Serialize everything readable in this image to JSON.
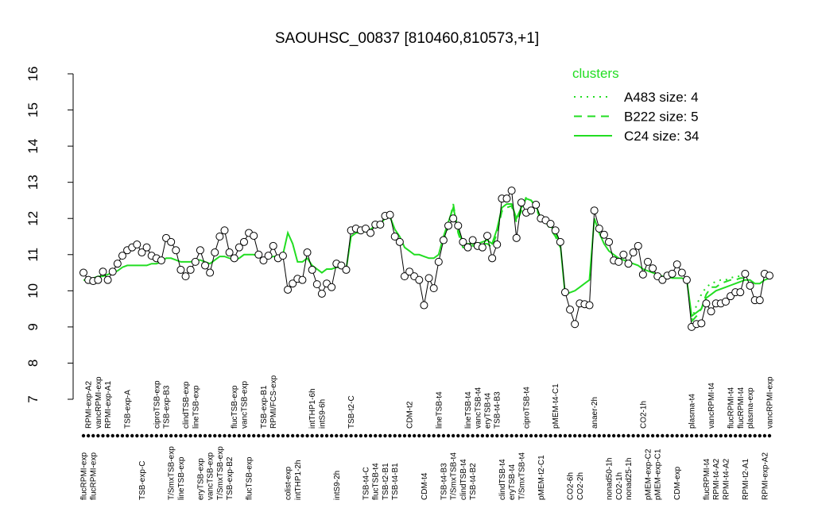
{
  "chart_data": {
    "type": "line",
    "title": "SAOUHSC_00837 [810460,810573,+1]",
    "legend_title": "clusters",
    "legend_position": "top-right",
    "ylim": [
      7,
      16
    ],
    "yticks": [
      7,
      8,
      9,
      10,
      11,
      12,
      13,
      14,
      15,
      16
    ],
    "point_color": "#000000",
    "categories": [
      "flucRPMI-exp",
      "RPMI-exp-A2",
      "flucRPMI-exp",
      "vancRPMI-exp",
      null,
      "RPMI-exp-A1",
      null,
      null,
      null,
      "TSB-exp-A",
      null,
      null,
      "TSB-exp-C",
      null,
      null,
      "ciproTSB-exp",
      null,
      "TSB-exp-B3",
      "T/SmxTSB-exp",
      null,
      "lineTSB-exp",
      "clindTSB-exp",
      null,
      "lineTSB-exp",
      "eryTSB-exp",
      null,
      "vancTSB-exp",
      null,
      "T/SmxTSB-exp",
      null,
      "TSB-exp-B2",
      "flucTSB-exp",
      null,
      "vancTSB-exp",
      "flucTSB-exp",
      null,
      null,
      "TSB-exp-B1",
      null,
      "RPMI/FCS-exp",
      null,
      null,
      "colist-exp",
      null,
      "intTHP1-2h",
      null,
      null,
      "intTHP1-6h",
      null,
      "intS9-6h",
      null,
      null,
      "intS9-2h",
      null,
      null,
      "TSB-t2-C",
      null,
      null,
      "TSB-t4-C",
      null,
      "flucTSB-t4",
      null,
      "TSB-t2-B1",
      null,
      "TSB-t4-B1",
      null,
      null,
      "CDM-t2",
      null,
      null,
      "CDM-t4",
      null,
      null,
      "lineTSB-t4",
      "TSB-t4-B3",
      null,
      "T/SmxTSB-t4",
      null,
      "clindTSB-t4",
      "lineTSB-t4",
      "TSB-t4-B2",
      "vancTSB-t4",
      null,
      "eryTSB-t4",
      null,
      "TSB-t4-B3",
      "clindTSB-t4",
      null,
      "eryTSB-t4",
      null,
      "T/SmxTSB-t4",
      "ciproTSB-t4",
      null,
      null,
      "pMEM-t2-C1",
      null,
      null,
      "pMEM-t4-C1",
      null,
      null,
      "CO2-6h",
      null,
      "CO2-2h",
      null,
      null,
      "anaer-2h",
      null,
      null,
      "nonad50-1h",
      null,
      "CO2-1h",
      null,
      "nonad25-1h",
      null,
      null,
      "CO2-1h",
      "pMEM-exp-C2",
      null,
      "pMEM-exp-C1",
      null,
      null,
      null,
      "CDM-exp",
      null,
      null,
      "plasma-t4",
      null,
      null,
      "flucRPMI-t4",
      "vancRPMI-t4",
      "RPMI-t4-A2",
      null,
      "RPMI-t4-A2",
      "flucRPMI-t4",
      null,
      "flucRPMI-t4",
      "RPMI-t2-A1",
      "plasma-exp",
      null,
      null,
      "RPMI-exp-A2",
      "vancRPMI-exp"
    ],
    "values": [
      10.5,
      10.3,
      10.27,
      10.3,
      10.53,
      10.3,
      10.53,
      10.75,
      10.97,
      11.12,
      11.2,
      11.28,
      11.06,
      11.2,
      10.97,
      10.9,
      10.84,
      11.46,
      11.35,
      11.12,
      10.58,
      10.4,
      10.58,
      10.8,
      11.12,
      10.7,
      10.5,
      11.06,
      11.5,
      11.67,
      11.06,
      10.9,
      11.2,
      11.35,
      11.6,
      11.52,
      11.0,
      10.84,
      10.97,
      11.24,
      10.9,
      10.97,
      10.03,
      10.2,
      10.33,
      10.3,
      11.06,
      10.58,
      10.18,
      9.92,
      10.2,
      10.1,
      10.75,
      10.7,
      10.58,
      11.67,
      11.72,
      11.67,
      11.72,
      11.6,
      11.83,
      11.83,
      12.07,
      12.1,
      11.5,
      11.35,
      10.4,
      10.53,
      10.4,
      10.3,
      9.6,
      10.35,
      10.07,
      10.8,
      11.4,
      11.8,
      12.0,
      11.8,
      11.35,
      11.2,
      11.4,
      11.24,
      11.2,
      11.52,
      10.9,
      11.28,
      12.55,
      12.55,
      12.77,
      11.46,
      12.44,
      12.16,
      12.22,
      12.38,
      12.0,
      11.95,
      11.85,
      11.67,
      11.35,
      9.96,
      9.48,
      9.08,
      9.65,
      9.63,
      9.6,
      12.22,
      11.72,
      11.55,
      11.35,
      10.84,
      10.8,
      11.0,
      10.75,
      11.06,
      11.24,
      10.45,
      10.8,
      10.62,
      10.4,
      10.3,
      10.42,
      10.47,
      10.73,
      10.5,
      10.3,
      9.0,
      9.08,
      9.1,
      9.65,
      9.43,
      9.65,
      9.65,
      9.7,
      9.85,
      9.96,
      9.96,
      10.47,
      10.14,
      9.74,
      9.74,
      10.47,
      10.42
    ],
    "series": [
      {
        "name": "A483 size: 4",
        "color": "#22dd22",
        "dash": "dotted",
        "values": [
          null,
          null,
          null,
          null,
          null,
          null,
          null,
          null,
          null,
          null,
          null,
          null,
          null,
          null,
          null,
          null,
          null,
          null,
          null,
          null,
          null,
          null,
          null,
          null,
          null,
          null,
          null,
          null,
          null,
          null,
          null,
          null,
          null,
          null,
          null,
          null,
          null,
          null,
          null,
          null,
          null,
          null,
          null,
          null,
          null,
          null,
          null,
          null,
          null,
          null,
          null,
          null,
          null,
          null,
          null,
          null,
          null,
          null,
          null,
          null,
          null,
          null,
          null,
          null,
          null,
          null,
          null,
          null,
          null,
          null,
          null,
          null,
          null,
          null,
          null,
          null,
          null,
          null,
          null,
          null,
          null,
          null,
          null,
          null,
          null,
          null,
          null,
          null,
          null,
          null,
          null,
          null,
          null,
          null,
          null,
          null,
          null,
          null,
          null,
          null,
          null,
          null,
          null,
          null,
          null,
          null,
          null,
          null,
          null,
          null,
          null,
          null,
          null,
          null,
          null,
          null,
          null,
          null,
          null,
          null,
          null,
          null,
          null,
          null,
          null,
          9.2,
          9.6,
          9.9,
          10.1,
          10.2,
          10.25,
          10.3,
          10.3,
          10.35,
          10.4,
          10.4,
          10.45,
          null,
          null,
          null,
          null,
          null
        ]
      },
      {
        "name": "B222 size: 5",
        "color": "#22dd22",
        "dash": "dashed",
        "values": [
          null,
          null,
          null,
          null,
          null,
          null,
          null,
          null,
          null,
          null,
          null,
          null,
          null,
          null,
          null,
          null,
          null,
          null,
          null,
          null,
          null,
          null,
          null,
          null,
          null,
          null,
          null,
          null,
          null,
          null,
          null,
          null,
          null,
          null,
          null,
          null,
          null,
          null,
          null,
          null,
          null,
          null,
          null,
          null,
          null,
          null,
          null,
          null,
          null,
          null,
          null,
          null,
          null,
          null,
          null,
          null,
          null,
          null,
          null,
          null,
          null,
          null,
          null,
          null,
          null,
          null,
          null,
          null,
          null,
          null,
          null,
          null,
          null,
          null,
          11.3,
          11.8,
          12.4,
          11.6,
          11.2,
          11.2,
          11.25,
          11.2,
          11.3,
          11.3,
          11.2,
          11.6,
          12.2,
          12.3,
          12.35,
          11.9,
          12.2,
          12.6,
          12.5,
          12.3,
          11.95,
          11.9,
          11.7,
          11.5,
          11.2,
          null,
          null,
          null,
          null,
          null,
          null,
          null,
          null,
          null,
          null,
          null,
          null,
          null,
          null,
          null,
          null,
          null,
          null,
          null,
          null,
          null,
          null,
          null,
          null,
          null,
          null,
          9.15,
          9.3,
          9.5,
          9.9,
          10.1,
          10.1,
          10.2,
          10.25,
          10.3,
          10.3,
          10.35,
          10.35,
          null,
          null,
          null,
          null,
          null
        ]
      },
      {
        "name": "C24 size: 34",
        "color": "#22dd22",
        "dash": "solid",
        "values": [
          10.3,
          10.3,
          10.35,
          10.4,
          10.4,
          10.45,
          10.5,
          10.55,
          10.65,
          10.7,
          10.7,
          10.7,
          10.7,
          10.7,
          10.75,
          10.75,
          10.8,
          10.9,
          10.9,
          10.85,
          10.8,
          10.8,
          10.8,
          10.85,
          10.85,
          10.8,
          10.75,
          10.85,
          10.95,
          10.95,
          10.9,
          10.85,
          10.9,
          11.0,
          11.0,
          11.0,
          10.95,
          10.85,
          10.9,
          10.95,
          10.95,
          11.0,
          11.6,
          11.3,
          10.8,
          10.8,
          10.9,
          10.7,
          10.6,
          10.5,
          10.6,
          10.6,
          10.65,
          10.65,
          10.6,
          11.5,
          11.6,
          11.6,
          11.65,
          11.7,
          11.8,
          11.85,
          12.0,
          12.05,
          11.7,
          11.5,
          11.2,
          11.1,
          11.0,
          11.0,
          10.95,
          10.9,
          10.9,
          11.0,
          11.5,
          11.9,
          12.3,
          11.7,
          11.3,
          11.3,
          11.3,
          11.3,
          11.35,
          11.4,
          11.3,
          11.7,
          12.3,
          12.4,
          12.4,
          12.0,
          12.3,
          12.55,
          12.5,
          12.35,
          12.0,
          11.95,
          11.8,
          11.6,
          11.3,
          9.9,
          9.95,
          10.0,
          10.1,
          10.2,
          10.3,
          12.0,
          11.6,
          11.3,
          11.1,
          11.0,
          10.9,
          10.85,
          10.8,
          10.75,
          10.7,
          10.6,
          10.55,
          10.5,
          10.45,
          10.4,
          10.38,
          10.35,
          10.35,
          10.35,
          10.3,
          9.3,
          9.4,
          9.5,
          9.8,
          9.9,
          10.0,
          10.05,
          10.1,
          10.15,
          10.2,
          10.25,
          10.3,
          10.3,
          10.2,
          10.2,
          10.3,
          10.35
        ]
      }
    ]
  }
}
